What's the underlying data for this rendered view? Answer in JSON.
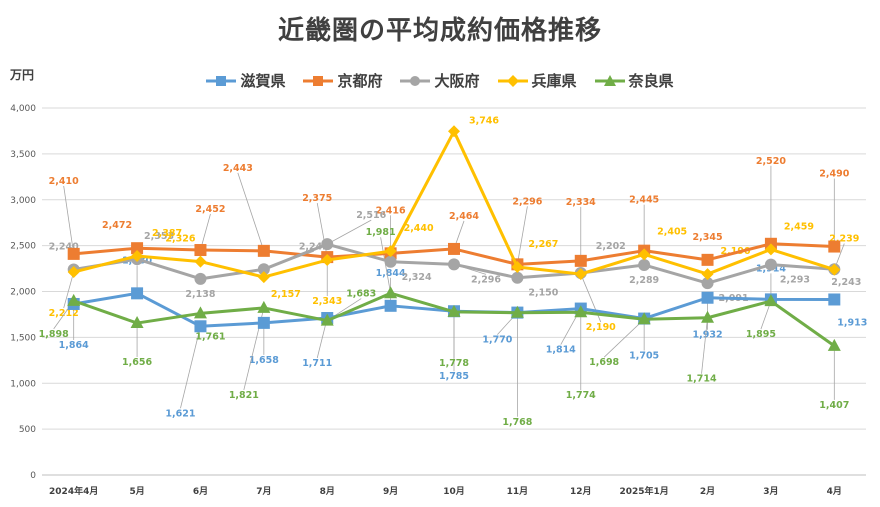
{
  "chart_data": {
    "type": "line",
    "title": "近畿圏の平均成約価格推移",
    "ylabel": "万円",
    "ylim": [
      0,
      4000
    ],
    "yticks": [
      "0",
      "500",
      "1,000",
      "1,500",
      "2,000",
      "2,500",
      "3,000",
      "3,500",
      "4,000"
    ],
    "ytick_values": [
      0,
      500,
      1000,
      1500,
      2000,
      2500,
      3000,
      3500,
      4000
    ],
    "categories": [
      "2024年4月",
      "5月",
      "6月",
      "7月",
      "8月",
      "9月",
      "10月",
      "11月",
      "12月",
      "2025年1月",
      "2月",
      "3月",
      "4月"
    ],
    "grid": true,
    "legend_position": "top",
    "series": [
      {
        "name": "滋賀県",
        "color": "#5b9bd5",
        "marker": "square",
        "values": [
          1864,
          1980,
          1621,
          1658,
          1711,
          1844,
          1785,
          1770,
          1814,
          1705,
          1932,
          1914,
          1913
        ],
        "labels": [
          "1,864",
          "1,980",
          "1,621",
          "1,658",
          "1,711",
          "1,844",
          "1,785",
          "1,770",
          "1,814",
          "1,705",
          "1,932",
          "1,914",
          "1,913"
        ]
      },
      {
        "name": "京都府",
        "color": "#ed7d31",
        "marker": "square",
        "values": [
          2410,
          2472,
          2452,
          2443,
          2375,
          2416,
          2464,
          2296,
          2334,
          2445,
          2345,
          2520,
          2490
        ],
        "labels": [
          "2,410",
          "2,472",
          "2,452",
          "2,443",
          "2,375",
          "2,416",
          "2,464",
          "2,296",
          "2,334",
          "2,445",
          "2,345",
          "2,520",
          "2,490"
        ]
      },
      {
        "name": "大阪府",
        "color": "#a5a5a5",
        "marker": "circle",
        "values": [
          2240,
          2353,
          2138,
          2242,
          2516,
          2324,
          2296,
          2150,
          2202,
          2289,
          2091,
          2293,
          2243
        ],
        "labels": [
          "2,240",
          "2,353",
          "2,138",
          "2,242",
          "2,516",
          "2,324",
          "2,296",
          "2,150",
          "2,202",
          "2,289",
          "2,091",
          "2,293",
          "2,243"
        ]
      },
      {
        "name": "兵庫県",
        "color": "#ffc000",
        "marker": "diamond",
        "values": [
          2212,
          2387,
          2326,
          2157,
          2343,
          2440,
          3746,
          2267,
          2190,
          2405,
          2190,
          2459,
          2239
        ],
        "labels": [
          "2,212",
          "2,387",
          "2,326",
          "2,157",
          "2,343",
          "2,440",
          "3,746",
          "2,267",
          "2,190",
          "2,405",
          "2,190",
          "2,459",
          "2,239"
        ]
      },
      {
        "name": "奈良県",
        "color": "#70ad47",
        "marker": "triangle",
        "values": [
          1898,
          1656,
          1761,
          1821,
          1683,
          1981,
          1778,
          1768,
          1774,
          1698,
          1714,
          1895,
          1407
        ],
        "labels": [
          "1,898",
          "1,656",
          "1,761",
          "1,821",
          "1,683",
          "1,981",
          "1,778",
          "1,768",
          "1,774",
          "1,698",
          "1,714",
          "1,895",
          "1,407"
        ]
      }
    ]
  }
}
